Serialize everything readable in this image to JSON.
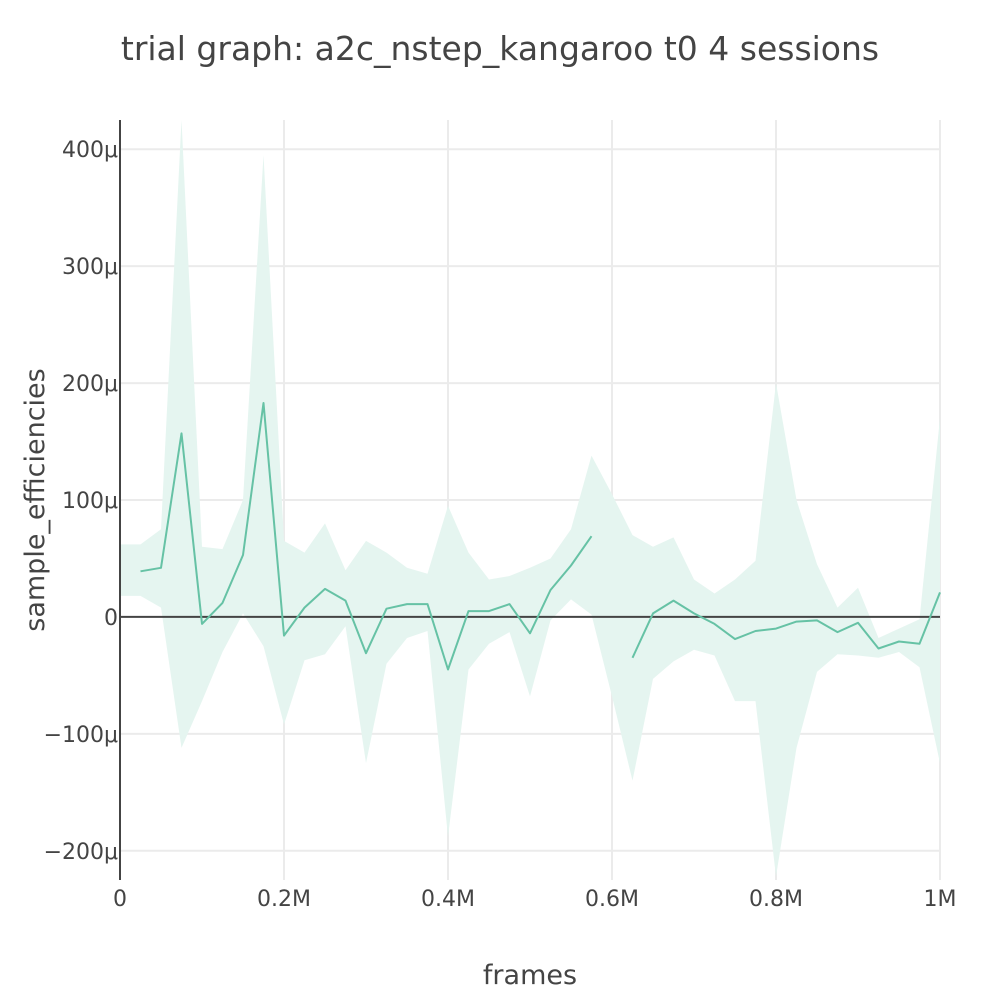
{
  "chart_data": {
    "type": "line",
    "title": "trial graph: a2c_nstep_kangaroo t0 4 sessions",
    "xlabel": "frames",
    "ylabel": "sample_efficiencies",
    "xlim": [
      0,
      1000000
    ],
    "ylim": [
      -0.000225,
      0.000425
    ],
    "grid": true,
    "legend": "none",
    "x_ticks": [
      {
        "value": 0,
        "label": "0"
      },
      {
        "value": 200000,
        "label": "0.2M"
      },
      {
        "value": 400000,
        "label": "0.4M"
      },
      {
        "value": 600000,
        "label": "0.6M"
      },
      {
        "value": 800000,
        "label": "0.8M"
      },
      {
        "value": 1000000,
        "label": "1M"
      }
    ],
    "y_ticks": [
      {
        "value": -0.0002,
        "label": "−200μ"
      },
      {
        "value": -0.0001,
        "label": "−100μ"
      },
      {
        "value": 0,
        "label": "0"
      },
      {
        "value": 0.0001,
        "label": "100μ"
      },
      {
        "value": 0.0002,
        "label": "200μ"
      },
      {
        "value": 0.0003,
        "label": "300μ"
      },
      {
        "value": 0.0004,
        "label": "400μ"
      }
    ],
    "colors": {
      "line": "#66c2a5",
      "band": "#e5f5f0",
      "grid": "#ebebeb",
      "zero": "#444444",
      "axis": "#444444"
    },
    "band_x": [
      0,
      25000,
      50000,
      75000,
      100000,
      125000,
      150000,
      175000,
      200000,
      225000,
      250000,
      275000,
      300000,
      325000,
      350000,
      375000,
      400000,
      425000,
      450000,
      475000,
      500000,
      525000,
      550000,
      575000,
      600000,
      625000,
      650000,
      675000,
      700000,
      725000,
      750000,
      775000,
      800000,
      825000,
      850000,
      875000,
      900000,
      925000,
      950000,
      975000,
      1000000
    ],
    "band_upper": [
      6.2e-05,
      6.2e-05,
      7.5e-05,
      0.000425,
      6e-05,
      5.8e-05,
      0.0001,
      0.000395,
      6.5e-05,
      5.5e-05,
      8e-05,
      4e-05,
      6.5e-05,
      5.5e-05,
      4.2e-05,
      3.7e-05,
      9.5e-05,
      5.5e-05,
      3.2e-05,
      3.5e-05,
      4.2e-05,
      5e-05,
      7.5e-05,
      0.000138,
      0.000105,
      7e-05,
      6e-05,
      6.8e-05,
      3.2e-05,
      2e-05,
      3.2e-05,
      4.8e-05,
      0.0002,
      0.0001,
      4.5e-05,
      8e-06,
      2.5e-05,
      -1.8e-05,
      -1e-05,
      -2e-06,
      0.00017
    ],
    "band_lower": [
      1.8e-05,
      1.8e-05,
      8e-06,
      -0.000112,
      -7.2e-05,
      -3e-05,
      3e-06,
      -2.5e-05,
      -9.2e-05,
      -3.7e-05,
      -3.2e-05,
      -8e-06,
      -0.000125,
      -4e-05,
      -1.8e-05,
      -1.2e-05,
      -0.000188,
      -4.5e-05,
      -2.3e-05,
      -1.3e-05,
      -6.8e-05,
      -3e-06,
      1.5e-05,
      2e-06,
      -6.8e-05,
      -0.00014,
      -5.3e-05,
      -3.8e-05,
      -2.8e-05,
      -3.3e-05,
      -7.2e-05,
      -7.2e-05,
      -0.000222,
      -0.000112,
      -4.7e-05,
      -3.2e-05,
      -3.3e-05,
      -3.5e-05,
      -3e-05,
      -4.3e-05,
      -0.000125
    ],
    "series": [
      {
        "x": [
          25000,
          50000,
          75000,
          100000,
          125000,
          150000,
          175000,
          200000,
          225000,
          250000,
          275000,
          300000,
          325000,
          350000,
          375000,
          400000,
          425000,
          450000,
          475000,
          500000,
          525000,
          550000,
          575000
        ],
        "y": [
          3.9e-05,
          4.2e-05,
          0.000157,
          -6e-06,
          1.2e-05,
          5.3e-05,
          0.000183,
          -1.6e-05,
          8e-06,
          2.4e-05,
          1.4e-05,
          -3.1e-05,
          7e-06,
          1.1e-05,
          1.1e-05,
          -4.5e-05,
          5e-06,
          5e-06,
          1.1e-05,
          -1.4e-05,
          2.3e-05,
          4.4e-05,
          6.9e-05
        ]
      },
      {
        "x": [
          625000,
          650000,
          675000,
          700000,
          725000,
          750000,
          775000,
          800000,
          825000,
          850000,
          875000,
          900000,
          925000,
          950000,
          975000,
          1000000
        ],
        "y": [
          -3.5e-05,
          3e-06,
          1.4e-05,
          3e-06,
          -6e-06,
          -1.9e-05,
          -1.2e-05,
          -1e-05,
          -4e-06,
          -3e-06,
          -1.3e-05,
          -5e-06,
          -2.7e-05,
          -2.1e-05,
          -2.3e-05,
          2.1e-05
        ]
      }
    ]
  }
}
